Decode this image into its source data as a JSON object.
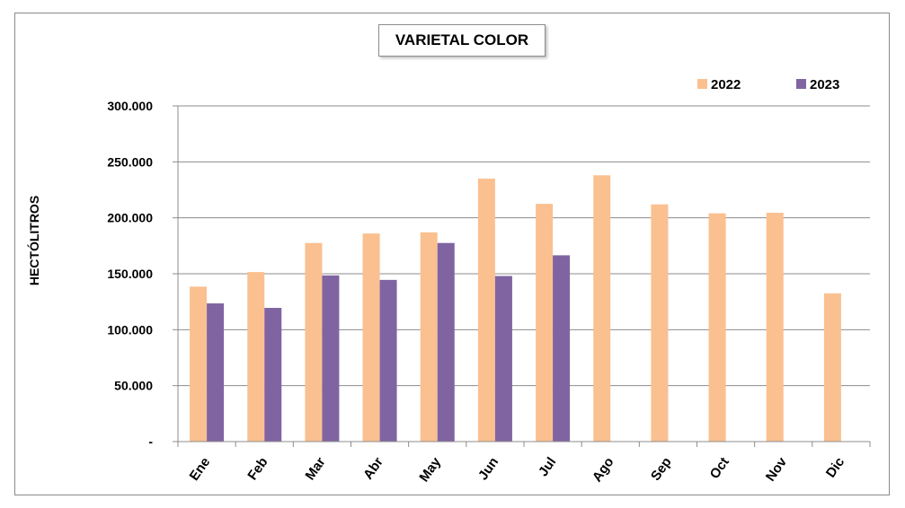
{
  "chart_data": {
    "type": "bar",
    "title": "VARIETAL COLOR",
    "xlabel": "",
    "ylabel": "HECTÓLITROS",
    "categories": [
      "Ene",
      "Feb",
      "Mar",
      "Abr",
      "May",
      "Jun",
      "Jul",
      "Ago",
      "Sep",
      "Oct",
      "Nov",
      "Dic"
    ],
    "series": [
      {
        "name": "2022",
        "color": "#FAC090",
        "values": [
          138500,
          151500,
          177500,
          186000,
          187000,
          235000,
          212500,
          238000,
          212000,
          204000,
          204500,
          132500
        ]
      },
      {
        "name": "2023",
        "color": "#8064A2",
        "values": [
          123500,
          119500,
          148500,
          144500,
          177500,
          148000,
          166500,
          null,
          null,
          null,
          null,
          null
        ]
      }
    ],
    "ylim": [
      0,
      300000
    ],
    "yticks": [
      0,
      50000,
      100000,
      150000,
      200000,
      250000,
      300000
    ],
    "ytick_labels": [
      "-",
      "50.000",
      "100.000",
      "150.000",
      "200.000",
      "250.000",
      "300.000"
    ],
    "grid": true,
    "legend_position": "top-right"
  }
}
